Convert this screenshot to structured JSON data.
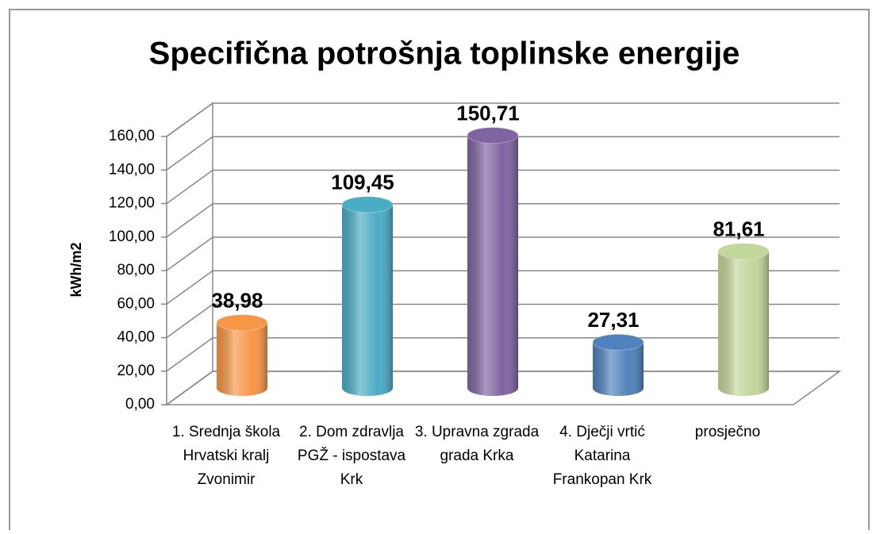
{
  "chart_data": {
    "type": "bar3d",
    "title": "Specifična potrošnja toplinske energije",
    "y_label": "kWh/m2",
    "categories": [
      "1. Srednja škola Hrvatski kralj Zvonimir",
      "2. Dom zdravlja PGŽ - ispostava Krk",
      "3. Upravna zgrada grada Krka",
      "4. Dječji vrtić Katarina Frankopan Krk",
      "prosječno"
    ],
    "values": [
      38.98,
      109.45,
      150.71,
      27.31,
      81.61
    ],
    "value_labels": [
      "38,98",
      "109,45",
      "150,71",
      "27,31",
      "81,61"
    ],
    "colors": [
      "#f79646",
      "#4bacc6",
      "#8064a2",
      "#4f81bd",
      "#c3d69b"
    ],
    "ylim": [
      0,
      160
    ],
    "yticks": [
      {
        "value": 0,
        "label": "0,00"
      },
      {
        "value": 20,
        "label": "20,00"
      },
      {
        "value": 40,
        "label": "40,00"
      },
      {
        "value": 60,
        "label": "60,00"
      },
      {
        "value": 80,
        "label": "80,00"
      },
      {
        "value": 100,
        "label": "100,00"
      },
      {
        "value": 120,
        "label": "120,00"
      },
      {
        "value": 140,
        "label": "140,00"
      },
      {
        "value": 160,
        "label": "160,00"
      }
    ],
    "grid": true
  }
}
